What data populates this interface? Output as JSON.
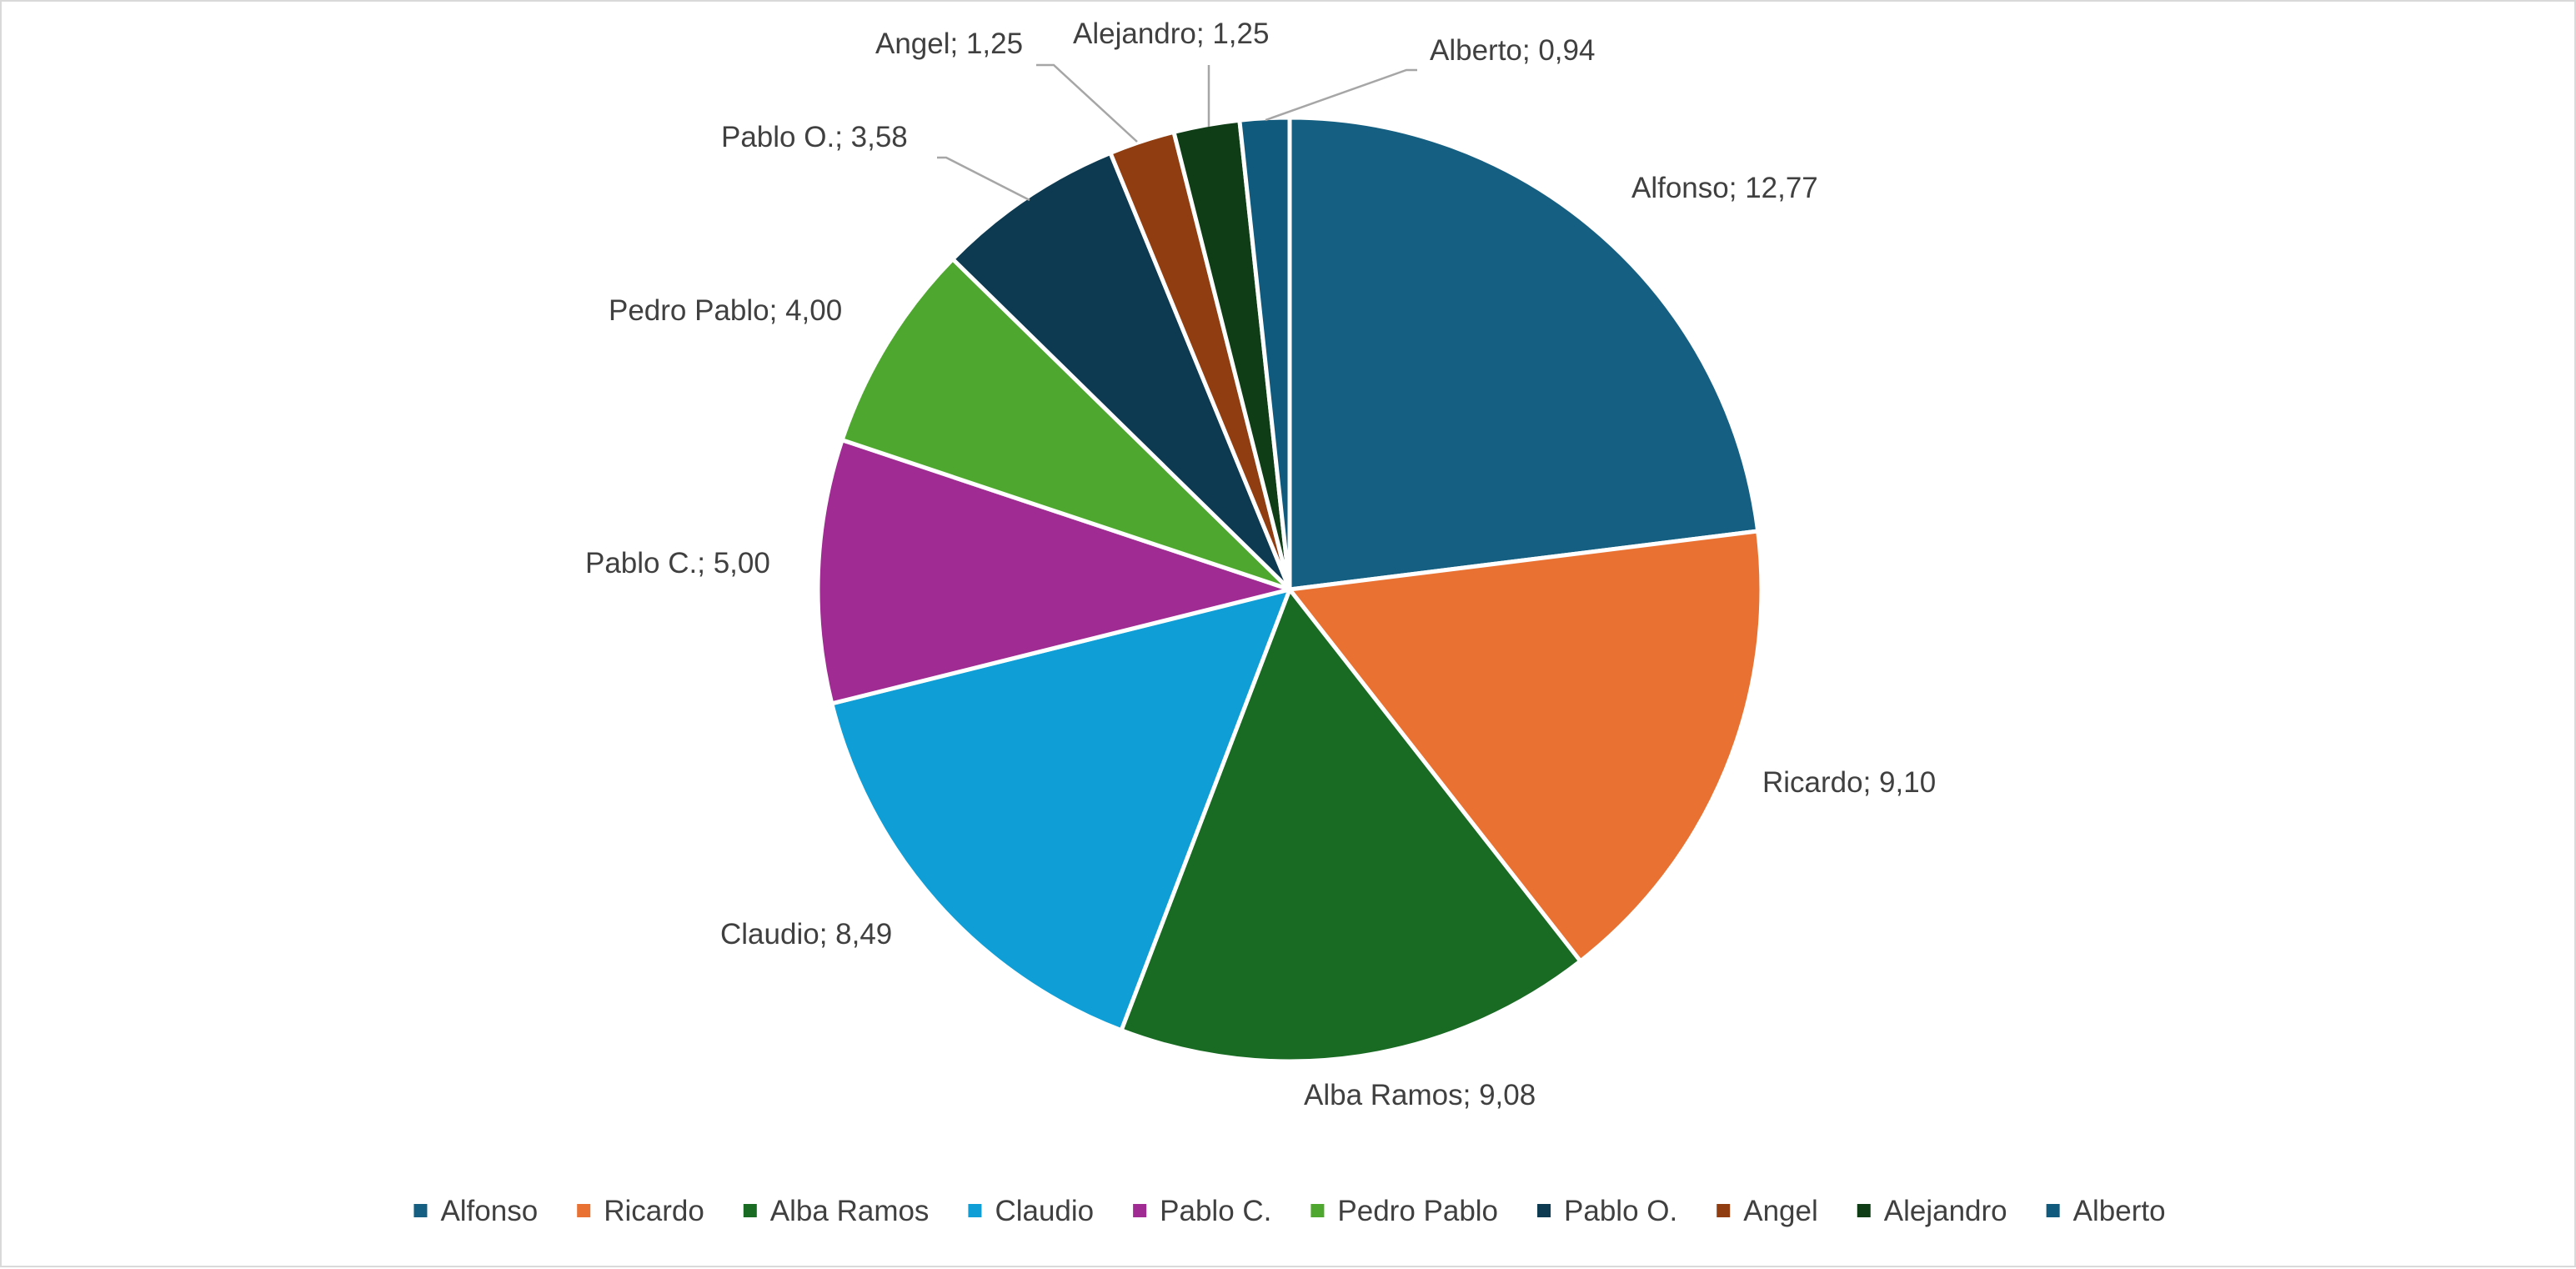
{
  "chart_data": {
    "type": "pie",
    "title": "",
    "decimal_separator": ",",
    "legend_position": "bottom",
    "slices": [
      {
        "name": "Alfonso",
        "value": 12.77,
        "label": "Alfonso; 12,77",
        "color": "#156082"
      },
      {
        "name": "Ricardo",
        "value": 9.1,
        "label": "Ricardo; 9,10",
        "color": "#E97132"
      },
      {
        "name": "Alba Ramos",
        "value": 9.08,
        "label": "Alba Ramos; 9,08",
        "color": "#196B24"
      },
      {
        "name": "Claudio",
        "value": 8.49,
        "label": "Claudio; 8,49",
        "color": "#0F9ED5"
      },
      {
        "name": "Pablo C.",
        "value": 5.0,
        "label": "Pablo C.; 5,00",
        "color": "#A02B93"
      },
      {
        "name": "Pedro Pablo",
        "value": 4.0,
        "label": "Pedro Pablo; 4,00",
        "color": "#4EA72E"
      },
      {
        "name": "Pablo O.",
        "value": 3.58,
        "label": "Pablo O.; 3,58",
        "color": "#0D3A50"
      },
      {
        "name": "Angel",
        "value": 1.25,
        "label": "Angel; 1,25",
        "color": "#8F3D11"
      },
      {
        "name": "Alejandro",
        "value": 1.25,
        "label": "Alejandro; 1,25",
        "color": "#0F3D16"
      },
      {
        "name": "Alberto",
        "value": 0.94,
        "label": "Alberto; 0,94",
        "color": "#105A7D"
      }
    ]
  }
}
